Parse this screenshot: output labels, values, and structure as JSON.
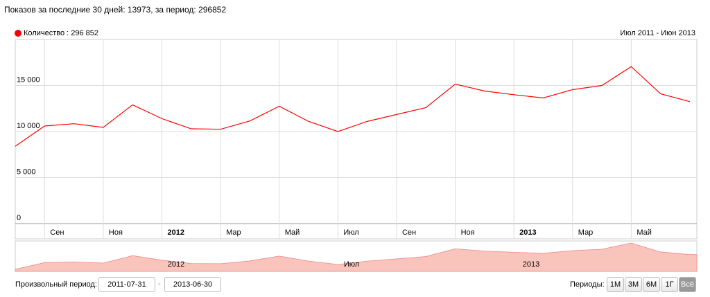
{
  "header": {
    "text": "Показов за последние 30 дней: 13973, за период: 296852"
  },
  "chart_data": {
    "type": "line",
    "range_label": "Июл 2011 - Июн 2013",
    "categories": [
      null,
      "Сен",
      null,
      "Ноя",
      null,
      "2012",
      null,
      "Мар",
      null,
      "Май",
      null,
      "Июл",
      null,
      "Сен",
      null,
      "Ноя",
      null,
      "2013",
      null,
      "Мар",
      null,
      "Май",
      null,
      null
    ],
    "series": [
      {
        "name": "Количество : 296 852",
        "color": "#ff0000",
        "values": [
          8400,
          10600,
          10850,
          10450,
          12900,
          11400,
          10300,
          10250,
          11150,
          12750,
          11100,
          10000,
          11100,
          11850,
          12600,
          15150,
          14400,
          14000,
          13650,
          14550,
          15000,
          17050,
          14100,
          13250
        ]
      }
    ],
    "ylim": [
      0,
      20000
    ],
    "yticks": [
      0,
      {
        "value": 5000,
        "label": "5 000"
      },
      {
        "value": 10000,
        "label": "10 000"
      },
      {
        "value": 15000,
        "label": "15 000"
      }
    ],
    "grid": true,
    "navigator": {
      "labels": [
        "2012",
        "Июл",
        "2013"
      ],
      "color": "#f9c4bb"
    }
  },
  "controls": {
    "custom_label": "Произвольный период:",
    "from": "2011-07-31",
    "separator": "-",
    "to": "2013-06-30",
    "periods_label": "Периоды:",
    "periods": [
      "1М",
      "3М",
      "6М",
      "1Г",
      "Всё"
    ]
  }
}
